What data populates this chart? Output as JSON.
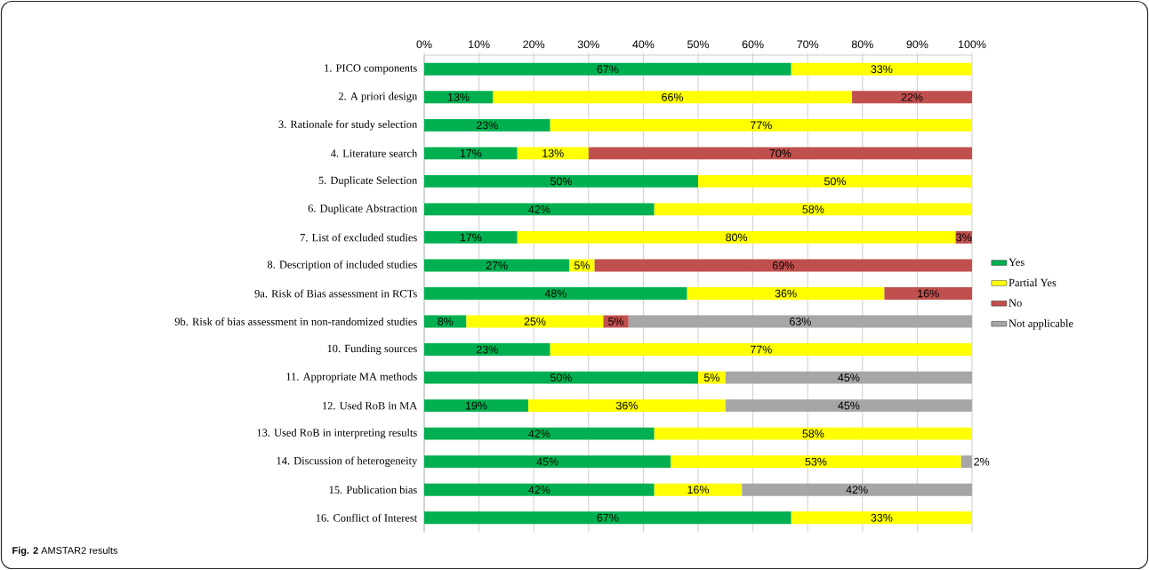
{
  "chart_data": {
    "type": "bar",
    "orientation": "horizontal",
    "stacked": true,
    "title": "**Fig. 2** AMSTAR2 results",
    "categories": [
      "1. PICO components",
      "2. A priori design",
      "3. Rationale for study selection",
      "4. Literature search",
      "5. Duplicate Selection",
      "6. Duplicate Abstraction",
      "7. List of excluded studies",
      "8. Description of included studies",
      "9a. Risk of Bias assessment in RCTs",
      "9b. Risk of bias assessment in non-randomized studies",
      "10. Funding sources",
      "11. Appropriate MA methods",
      "12. Used RoB in MA",
      "13. Used RoB in interpreting results",
      "14. Discussion of heterogeneity",
      "15. Publication bias",
      "16. Conflict of Interest"
    ],
    "series": [
      {
        "name": "Yes",
        "color": "#00b050",
        "values": [
          67,
          12.5,
          23,
          17,
          50,
          42,
          17,
          26.5,
          48,
          7.7,
          23,
          50,
          19,
          42,
          45,
          42,
          67
        ],
        "value_labels": [
          "67%",
          "13%",
          "23%",
          "17%",
          "50%",
          "42%",
          "17%",
          "27%",
          "48%",
          "8%",
          "23%",
          "50%",
          "19%",
          "42%",
          "45%",
          "42%",
          "67%"
        ]
      },
      {
        "name": "Partial Yes",
        "color": "#ffff00",
        "values": [
          33,
          65.6,
          77,
          13,
          50,
          58,
          80,
          4.6,
          36,
          25,
          77,
          5,
          36,
          58,
          53,
          16,
          33
        ],
        "value_labels": [
          "33%",
          "66%",
          "77%",
          "13%",
          "50%",
          "58%",
          "80%",
          "5%",
          "36%",
          "25%",
          "77%",
          "5%",
          "36%",
          "58%",
          "53%",
          "16%",
          "33%"
        ]
      },
      {
        "name": "No",
        "color": "#c0504d",
        "values": [
          null,
          21.9,
          null,
          70,
          null,
          null,
          3,
          68.9,
          16,
          4.6,
          null,
          null,
          null,
          null,
          null,
          null,
          null
        ],
        "value_labels": [
          null,
          "22%",
          null,
          "70%",
          null,
          null,
          "3%",
          "69%",
          "16%",
          "5%",
          null,
          null,
          null,
          null,
          null,
          null,
          null
        ]
      },
      {
        "name": "Not applicable",
        "color": "#a6a6a6",
        "values": [
          null,
          null,
          null,
          null,
          null,
          null,
          null,
          null,
          null,
          62.7,
          null,
          45,
          45,
          null,
          2,
          42,
          null
        ],
        "value_labels": [
          null,
          null,
          null,
          null,
          null,
          null,
          null,
          null,
          null,
          "63%",
          null,
          "45%",
          "45%",
          null,
          "2%",
          "42%",
          null
        ]
      }
    ],
    "xlim": [
      0,
      100
    ],
    "xticks": [
      {
        "value": 0,
        "label": "0%"
      },
      {
        "value": 10,
        "label": "10%"
      },
      {
        "value": 20,
        "label": "20%"
      },
      {
        "value": 30,
        "label": "30%"
      },
      {
        "value": 40,
        "label": "40%"
      },
      {
        "value": 50,
        "label": "50%"
      },
      {
        "value": 60,
        "label": "60%"
      },
      {
        "value": 70,
        "label": "70%"
      },
      {
        "value": 80,
        "label": "80%"
      },
      {
        "value": 90,
        "label": "90%"
      },
      {
        "value": 100,
        "label": "100%"
      }
    ],
    "grid": "x",
    "legend": "right"
  }
}
